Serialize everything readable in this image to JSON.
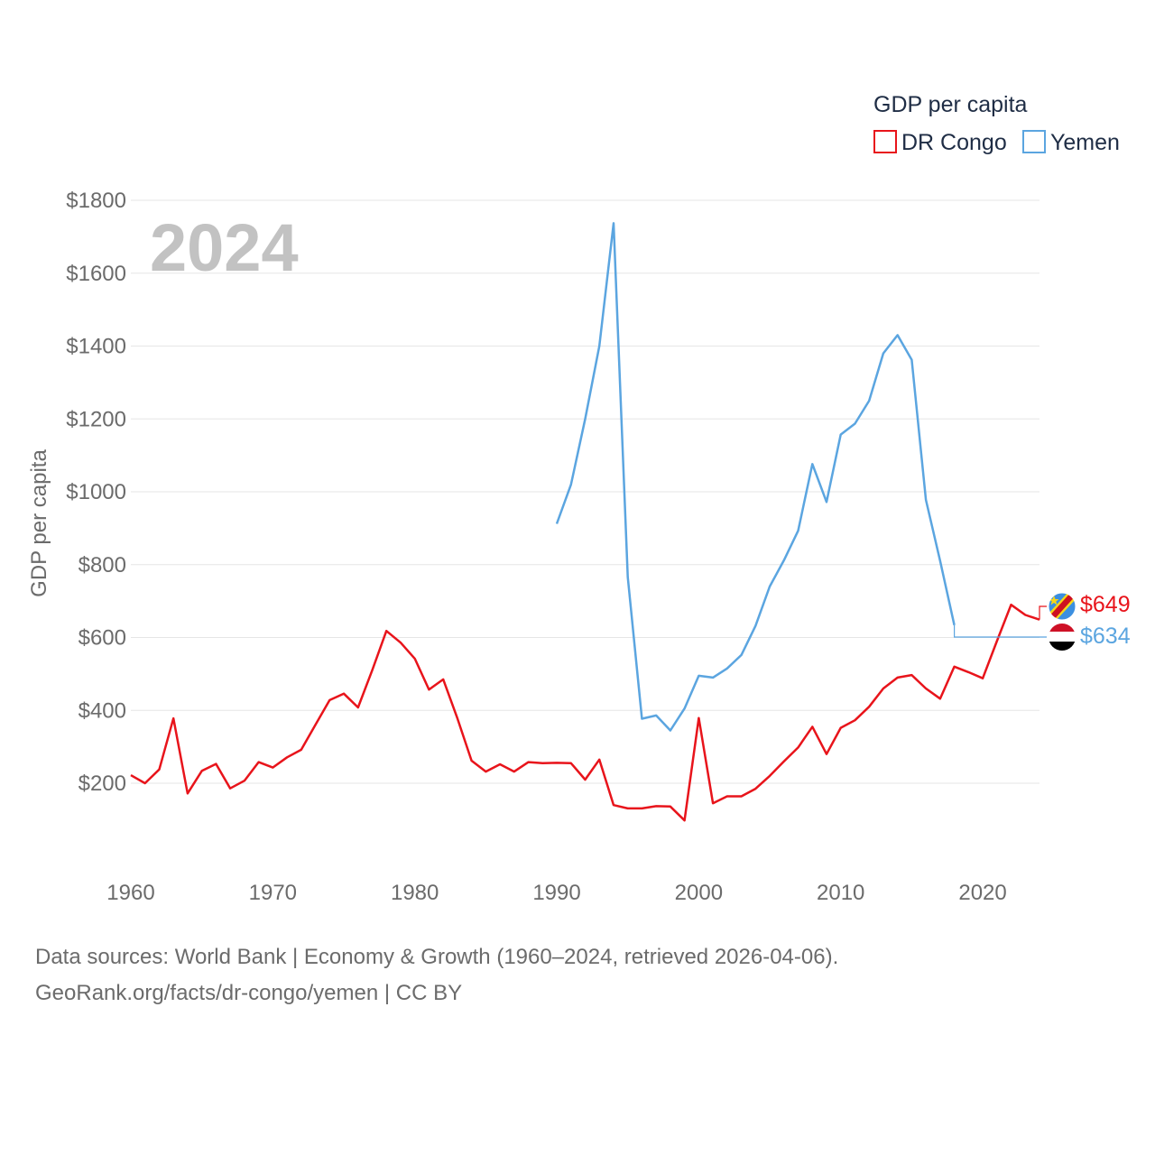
{
  "chart_data": {
    "type": "line",
    "year_label": "2024",
    "ylabel": "GDP per capita",
    "legend_title": "GDP per capita",
    "xlim": [
      1960,
      2024
    ],
    "ylim": [
      0,
      1800
    ],
    "yticks": [
      200,
      400,
      600,
      800,
      1000,
      1200,
      1400,
      1600,
      1800
    ],
    "ytick_labels": [
      "$200",
      "$400",
      "$600",
      "$800",
      "$1000",
      "$1200",
      "$1400",
      "$1600",
      "$1800"
    ],
    "xticks": [
      1960,
      1970,
      1980,
      1990,
      2000,
      2010,
      2020
    ],
    "xtick_labels": [
      "1960",
      "1970",
      "1980",
      "1990",
      "2000",
      "2010",
      "2020"
    ],
    "series": [
      {
        "name": "DR Congo",
        "color": "#e8141b",
        "end_label": "$649",
        "flag": "dr-congo-flag-icon",
        "x": [
          1960,
          1961,
          1962,
          1963,
          1964,
          1965,
          1966,
          1967,
          1968,
          1969,
          1970,
          1971,
          1972,
          1973,
          1974,
          1975,
          1976,
          1977,
          1978,
          1979,
          1980,
          1981,
          1982,
          1983,
          1984,
          1985,
          1986,
          1987,
          1988,
          1989,
          1990,
          1991,
          1992,
          1993,
          1994,
          1995,
          1996,
          1997,
          1998,
          1999,
          2000,
          2001,
          2002,
          2003,
          2004,
          2005,
          2006,
          2007,
          2008,
          2009,
          2010,
          2011,
          2012,
          2013,
          2014,
          2015,
          2016,
          2017,
          2018,
          2019,
          2020,
          2021,
          2022,
          2023,
          2024
        ],
        "values": [
          222,
          200,
          238,
          378,
          172,
          234,
          253,
          186,
          207,
          258,
          243,
          271,
          292,
          360,
          428,
          446,
          408,
          510,
          618,
          586,
          542,
          457,
          485,
          378,
          262,
          232,
          252,
          232,
          258,
          255,
          256,
          255,
          210,
          265,
          140,
          131,
          131,
          137,
          136,
          98,
          379,
          145,
          164,
          164,
          185,
          220,
          260,
          298,
          355,
          280,
          352,
          373,
          410,
          460,
          490,
          497,
          460,
          432,
          520,
          505,
          488,
          590,
          690,
          662,
          649
        ]
      },
      {
        "name": "Yemen",
        "color": "#5ba5e0",
        "end_label": "$634",
        "flag": "yemen-flag-icon",
        "x": [
          1990,
          1991,
          1992,
          1993,
          1994,
          1995,
          1996,
          1997,
          1998,
          1999,
          2000,
          2001,
          2002,
          2003,
          2004,
          2005,
          2006,
          2007,
          2008,
          2009,
          2010,
          2011,
          2012,
          2013,
          2014,
          2015,
          2016,
          2017,
          2018
        ],
        "values": [
          912,
          1020,
          1200,
          1400,
          1737,
          766,
          377,
          386,
          345,
          405,
          495,
          490,
          515,
          552,
          632,
          740,
          812,
          893,
          1076,
          972,
          1157,
          1187,
          1250,
          1380,
          1430,
          1362,
          978,
          810,
          634
        ]
      }
    ]
  },
  "footer": {
    "line1": "Data sources: World Bank | Economy & Growth (1960–2024, retrieved 2026-04-06).",
    "line2": "GeoRank.org/facts/dr-congo/yemen | CC BY"
  }
}
